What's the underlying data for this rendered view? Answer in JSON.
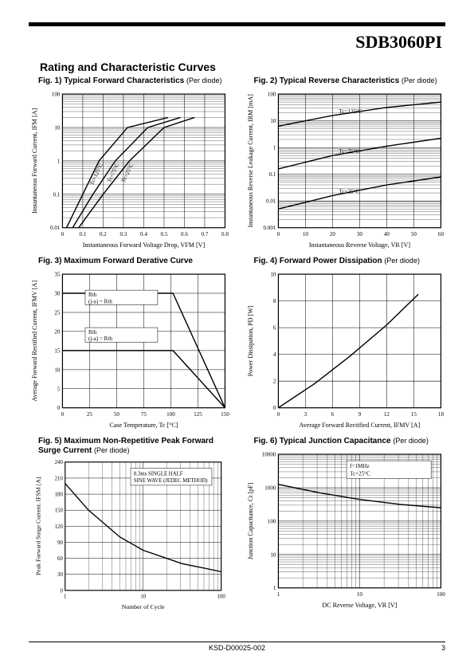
{
  "part_number": "SDB3060PI",
  "section_title": "Rating and Characteristic Curves",
  "doc_code": "KSD-D00025-002",
  "page_number": "3",
  "charts": {
    "fig1": {
      "fig_label": "Fig. 1) Typical Forward Characteristics",
      "per": "(Per diode)",
      "xlabel": "Instantaneous Forward Voltage Drop, VFM [V]",
      "ylabel": "Instantaneous Forward Current, IFM [A]",
      "xlim": [
        0,
        0.8
      ],
      "xticks": [
        0,
        0.1,
        0.2,
        0.3,
        0.4,
        0.5,
        0.6,
        0.7,
        0.8
      ],
      "yscale": "log",
      "ylim_exp": [
        -2,
        2
      ],
      "yticks_exp": [
        -2,
        -1,
        0,
        1,
        2
      ],
      "ytick_labels": [
        "0.01",
        "0.1",
        "1",
        "10",
        "100"
      ],
      "series": [
        {
          "label": "Tc=125°C",
          "pts": [
            [
              0.02,
              -2
            ],
            [
              0.1,
              -1
            ],
            [
              0.18,
              0
            ],
            [
              0.32,
              1
            ],
            [
              0.52,
              1.3
            ]
          ]
        },
        {
          "label": "Tc=75°C",
          "pts": [
            [
              0.05,
              -2
            ],
            [
              0.15,
              -1
            ],
            [
              0.26,
              0
            ],
            [
              0.42,
              1
            ],
            [
              0.58,
              1.3
            ]
          ]
        },
        {
          "label": "Tc=25°C",
          "pts": [
            [
              0.08,
              -2
            ],
            [
              0.2,
              -1
            ],
            [
              0.33,
              0
            ],
            [
              0.5,
              1
            ],
            [
              0.65,
              1.3
            ]
          ]
        }
      ],
      "line_color": "#000",
      "grid_color": "#000",
      "bg": "#fff"
    },
    "fig2": {
      "fig_label": "Fig. 2) Typical Reverse Characteristics",
      "per": "(Per diode)",
      "xlabel": "Instantaneous Reverse Voltage, VR [V]",
      "ylabel": "Instantaneous Reverse Leakage Current, IRM [mA]",
      "xlim": [
        0,
        60
      ],
      "xticks": [
        0,
        10,
        20,
        30,
        40,
        50,
        60
      ],
      "yscale": "log",
      "ylim_exp": [
        -3,
        2
      ],
      "yticks_exp": [
        -3,
        -2,
        -1,
        0,
        1,
        2
      ],
      "ytick_labels": [
        "0.001",
        "0.01",
        "0.1",
        "1",
        "10",
        "100"
      ],
      "series": [
        {
          "label": "Tc=125°C",
          "pts": [
            [
              0,
              0.8
            ],
            [
              20,
              1.2
            ],
            [
              40,
              1.5
            ],
            [
              60,
              1.7
            ]
          ]
        },
        {
          "label": "Tc=75°C",
          "pts": [
            [
              0,
              -0.8
            ],
            [
              20,
              -0.3
            ],
            [
              40,
              0.05
            ],
            [
              60,
              0.35
            ]
          ]
        },
        {
          "label": "Tc=25°C",
          "pts": [
            [
              0,
              -2.3
            ],
            [
              20,
              -1.8
            ],
            [
              40,
              -1.4
            ],
            [
              60,
              -1.1
            ]
          ]
        }
      ],
      "line_color": "#000",
      "grid_color": "#000",
      "bg": "#fff"
    },
    "fig3": {
      "fig_label": "Fig. 3) Maximum Forward Derative Curve",
      "per": "",
      "xlabel": "Case Temperature, Tc [°C]",
      "ylabel": "Average Forward Rectified Current, IFMV [A]",
      "xlim": [
        0,
        150
      ],
      "xticks": [
        0,
        25,
        50,
        75,
        100,
        125,
        150
      ],
      "ylim": [
        0,
        35
      ],
      "yticks": [
        0,
        5,
        10,
        15,
        20,
        25,
        30,
        35
      ],
      "series": [
        {
          "label": "Rth(j-a) = Rth(j-c) (Total device)",
          "pts": [
            [
              0,
              30
            ],
            [
              102,
              30
            ],
            [
              150,
              0
            ]
          ],
          "box_y": 0.82
        },
        {
          "label": "Rth(j-a) = Rth(j-c) (Per diode)",
          "pts": [
            [
              0,
              15
            ],
            [
              102,
              15
            ],
            [
              150,
              0
            ]
          ],
          "box_y": 0.54
        }
      ],
      "line_color": "#000",
      "grid_color": "#000",
      "bg": "#fff"
    },
    "fig4": {
      "fig_label": "Fig. 4) Forward Power Dissipation",
      "per": "(Per diode)",
      "xlabel": "Average Forward Rectified Current, IFMV [A]",
      "ylabel": "Power Dissipation, PD [W]",
      "xlim": [
        0,
        18
      ],
      "xticks": [
        0,
        3,
        6,
        9,
        12,
        15,
        18
      ],
      "ylim": [
        0,
        10
      ],
      "yticks": [
        0,
        2,
        4,
        6,
        8,
        10
      ],
      "series": [
        {
          "pts": [
            [
              0,
              0
            ],
            [
              4,
              1.8
            ],
            [
              8,
              3.9
            ],
            [
              12,
              6.2
            ],
            [
              15.5,
              8.5
            ]
          ]
        }
      ],
      "line_color": "#000",
      "grid_color": "#000",
      "bg": "#fff"
    },
    "fig5": {
      "fig_label": "Fig. 5) Maximum Non-Repetitive Peak Forward Surge Current",
      "per": "(Per diode)",
      "xlabel": "Number of Cycle",
      "ylabel": "Peak Forward Surge Current, IFSM [A]",
      "xscale": "log",
      "xlim_exp": [
        0,
        2
      ],
      "xticks_exp": [
        0,
        1,
        2
      ],
      "xtick_labels": [
        "1",
        "10",
        "100"
      ],
      "ylim": [
        0,
        240
      ],
      "yticks": [
        0,
        30,
        60,
        90,
        120,
        150,
        180,
        210,
        240
      ],
      "anno": "8.3ms SINGLE HALF SINE WAVE (JEDEC METHOD)",
      "series": [
        {
          "pts": [
            [
              0,
              200
            ],
            [
              0.3,
              150
            ],
            [
              0.7,
              100
            ],
            [
              1,
              75
            ],
            [
              1.5,
              50
            ],
            [
              2,
              35
            ]
          ]
        }
      ],
      "line_color": "#000",
      "grid_color": "#000",
      "bg": "#fff"
    },
    "fig6": {
      "fig_label": "Fig. 6) Typical Junction Capacitance",
      "per": "(Per diode)",
      "xlabel": "DC Reverse Voltage, VR [V]",
      "ylabel": "Junction Capacitance, Ct [pF]",
      "xscale": "log",
      "xlim_exp": [
        0,
        2
      ],
      "xticks_exp": [
        0,
        1,
        2
      ],
      "xtick_labels": [
        "1",
        "10",
        "100"
      ],
      "yscale": "log",
      "ylim_exp": [
        0,
        4
      ],
      "yticks_exp": [
        0,
        1,
        2,
        3,
        4
      ],
      "ytick_labels": [
        "1",
        "10",
        "100",
        "1000",
        "10000"
      ],
      "anno": "f=1MHz Tc=25°C",
      "series": [
        {
          "pts": [
            [
              0,
              3.1
            ],
            [
              0.5,
              2.85
            ],
            [
              1,
              2.65
            ],
            [
              1.5,
              2.5
            ],
            [
              2,
              2.4
            ]
          ]
        }
      ],
      "line_color": "#000",
      "grid_color": "#000",
      "bg": "#fff"
    }
  }
}
